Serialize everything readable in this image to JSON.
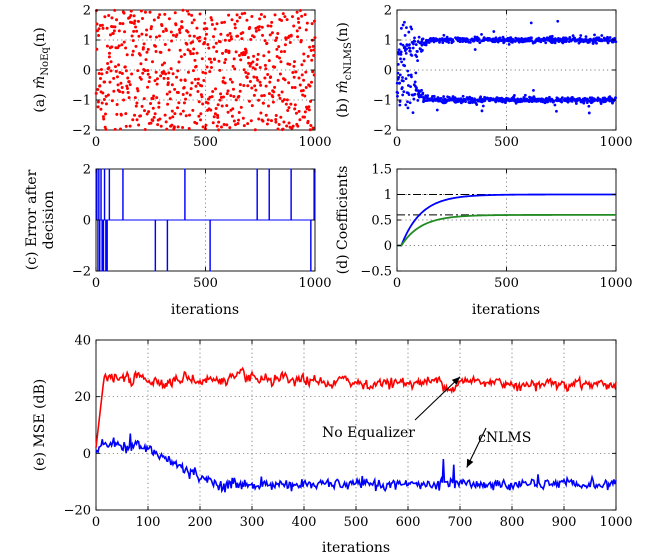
{
  "chart_data": [
    {
      "id": "a",
      "type": "scatter",
      "ylabel": "(a) m̂_NoEq(n)",
      "ylabel_text": "(a)",
      "ylabel_math": "m̂",
      "ylabel_sub": "NoEq",
      "ylabel_arg": "(n)",
      "xlim": [
        0,
        1000
      ],
      "ylim": [
        -2,
        2
      ],
      "xticks": [
        0,
        500,
        1000
      ],
      "yticks": [
        -2,
        -1,
        0,
        1,
        2
      ],
      "grid": true,
      "color": "#ff0000",
      "series": [
        {
          "points": 700,
          "range": [
            -2,
            2
          ],
          "distribution": "uniform"
        }
      ]
    },
    {
      "id": "b",
      "type": "scatter",
      "ylabel": "(b) m̂_cNLMS(n)",
      "ylabel_text": "(b)",
      "ylabel_math": "m̂",
      "ylabel_sub": "cNLMS",
      "ylabel_arg": "(n)",
      "xlim": [
        0,
        1000
      ],
      "ylim": [
        -2,
        2
      ],
      "xticks": [
        0,
        500,
        1000
      ],
      "yticks": [
        -2,
        -1,
        0,
        1,
        2
      ],
      "grid": true,
      "color": "#0000ff",
      "series": [
        {
          "points": 1000,
          "clusters": [
            1,
            -1
          ],
          "converged_after": 150
        }
      ]
    },
    {
      "id": "c",
      "type": "line",
      "ylabel": "(c) Error after decision",
      "ylabel_line1": "(c) Error after",
      "ylabel_line2": "decision",
      "xlabel": "iterations",
      "xlim": [
        0,
        1000
      ],
      "ylim": [
        -2,
        2
      ],
      "xticks": [
        0,
        500,
        1000
      ],
      "yticks": [
        -2,
        0,
        2
      ],
      "grid": true,
      "color": "#0000ff",
      "pulses": [
        {
          "x": 3,
          "v": 2
        },
        {
          "x": 8,
          "v": -2
        },
        {
          "x": 12,
          "v": 2
        },
        {
          "x": 16,
          "v": -2
        },
        {
          "x": 22,
          "v": 2
        },
        {
          "x": 27,
          "v": -2
        },
        {
          "x": 33,
          "v": -2
        },
        {
          "x": 38,
          "v": 2
        },
        {
          "x": 44,
          "v": -2
        },
        {
          "x": 50,
          "v": -2
        },
        {
          "x": 60,
          "v": 2
        },
        {
          "x": 122,
          "v": 2
        },
        {
          "x": 270,
          "v": -2
        },
        {
          "x": 325,
          "v": -2
        },
        {
          "x": 405,
          "v": 2
        },
        {
          "x": 520,
          "v": -2
        },
        {
          "x": 735,
          "v": 2
        },
        {
          "x": 790,
          "v": 2
        },
        {
          "x": 890,
          "v": 2
        },
        {
          "x": 980,
          "v": -2
        },
        {
          "x": 995,
          "v": 2
        }
      ]
    },
    {
      "id": "d",
      "type": "line",
      "ylabel": "(d) Coefficients",
      "xlabel": "iterations",
      "xlim": [
        0,
        1000
      ],
      "ylim": [
        -0.5,
        1.5
      ],
      "xticks": [
        0,
        500,
        1000
      ],
      "yticks": [
        -0.5,
        0,
        0.5,
        1,
        1.5
      ],
      "grid": true,
      "references": [
        1.0,
        0.6
      ],
      "series": [
        {
          "color": "#0000ff",
          "final": 1.0,
          "start": 0.0,
          "tau": 90
        },
        {
          "color": "#228b22",
          "final": 0.6,
          "start": 0.0,
          "tau": 90
        }
      ]
    },
    {
      "id": "e",
      "type": "line",
      "ylabel": "(e) MSE (dB)",
      "xlabel": "iterations",
      "xlim": [
        0,
        1000
      ],
      "ylim": [
        -20,
        40
      ],
      "xticks": [
        0,
        100,
        200,
        300,
        400,
        500,
        600,
        700,
        800,
        900,
        1000
      ],
      "yticks": [
        -20,
        0,
        20,
        40
      ],
      "grid": true,
      "series": [
        {
          "name": "No Equalizer",
          "color": "#ff0000",
          "mean": 26,
          "spread": 3
        },
        {
          "name": "cNLMS",
          "color": "#0000ff",
          "mean_start": 3,
          "mean_end": -11
        }
      ],
      "annotations": [
        {
          "text": "No Equalizer",
          "arrow_to": [
            700,
            27
          ]
        },
        {
          "text": "cNLMS",
          "arrow_to": [
            713,
            -5
          ]
        }
      ]
    }
  ]
}
